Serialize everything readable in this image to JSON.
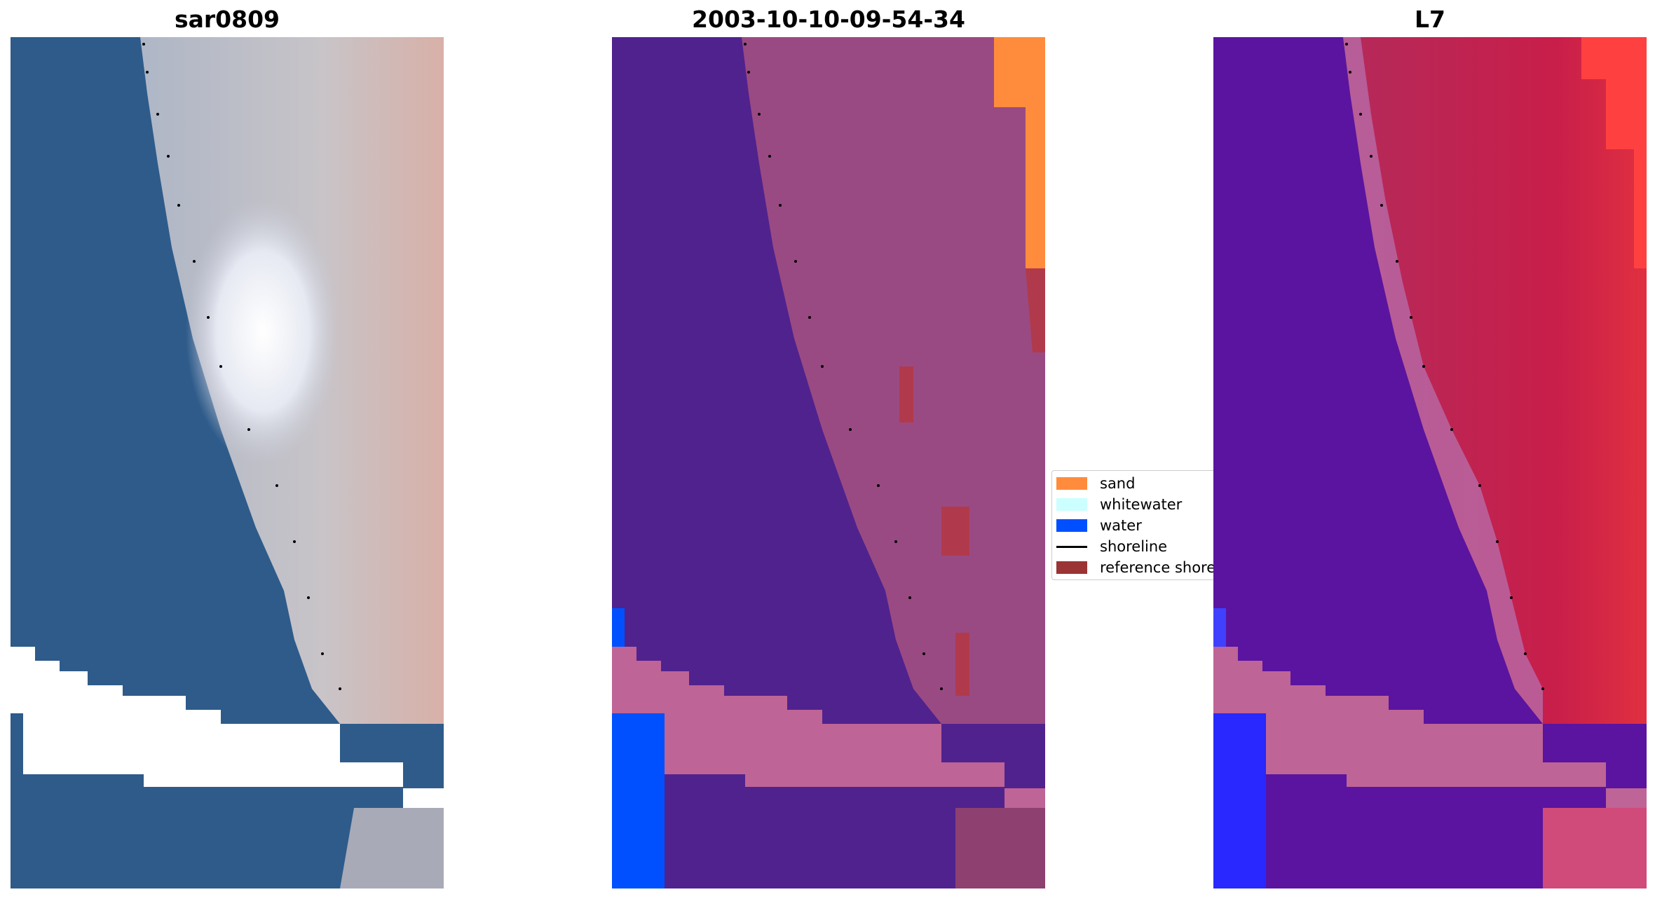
{
  "panels": [
    {
      "title": "sar0809",
      "kind": "rgb"
    },
    {
      "title": "2003-10-10-09-54-34",
      "kind": "classified"
    },
    {
      "title": "L7",
      "kind": "index"
    }
  ],
  "legend": {
    "items": [
      {
        "label": "sand",
        "color": "#ff8c3c"
      },
      {
        "label": "whitewater",
        "color": "#ccffff"
      },
      {
        "label": "water",
        "color": "#0050ff"
      },
      {
        "label": "shoreline",
        "color": "#000000"
      },
      {
        "label": "reference shoreline",
        "color": "#9b3434"
      }
    ]
  },
  "colors": {
    "ocean_rgb": "#2d5a8a",
    "land_rgb": "#b4b8c8",
    "bright_rgb": "#f0f2f8",
    "water_class": "#50228e",
    "land_class": "#9a4a82",
    "mask_overlay": "#be6496",
    "index_water": "#5a10a0",
    "index_land": "#c81e4a",
    "index_high": "#ff4040"
  }
}
